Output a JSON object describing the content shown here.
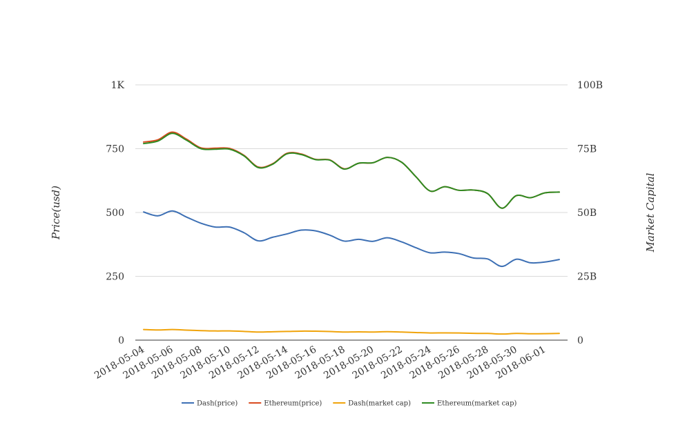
{
  "chart_data": {
    "type": "line",
    "x": [
      "2018-05-04",
      "2018-05-05",
      "2018-05-06",
      "2018-05-07",
      "2018-05-08",
      "2018-05-09",
      "2018-05-10",
      "2018-05-11",
      "2018-05-12",
      "2018-05-13",
      "2018-05-14",
      "2018-05-15",
      "2018-05-16",
      "2018-05-17",
      "2018-05-18",
      "2018-05-19",
      "2018-05-20",
      "2018-05-21",
      "2018-05-22",
      "2018-05-23",
      "2018-05-24",
      "2018-05-25",
      "2018-05-26",
      "2018-05-27",
      "2018-05-28",
      "2018-05-29",
      "2018-05-30",
      "2018-05-31",
      "2018-06-01",
      "2018-06-02"
    ],
    "x_tick_labels": [
      "2018-05-04",
      "2018-05-06",
      "2018-05-08",
      "2018-05-10",
      "2018-05-12",
      "2018-05-14",
      "2018-05-16",
      "2018-05-18",
      "2018-05-20",
      "2018-05-22",
      "2018-05-24",
      "2018-05-26",
      "2018-05-28",
      "2018-05-30",
      "2018-06-01"
    ],
    "y_left": {
      "label": "Price(usd)",
      "range": [
        0,
        1000
      ],
      "ticks": [
        0,
        250,
        500,
        750,
        1000
      ],
      "tick_labels": [
        "0",
        "250",
        "500",
        "750",
        "1K"
      ]
    },
    "y_right": {
      "label": "Market Capital",
      "range": [
        0,
        100000000000
      ],
      "ticks": [
        0,
        25000000000,
        50000000000,
        75000000000,
        100000000000
      ],
      "tick_labels": [
        "0",
        "25B",
        "50B",
        "75B",
        "100B"
      ]
    },
    "grid": true,
    "legend_position": "bottom",
    "series": [
      {
        "name": "Dash(price)",
        "axis": "left",
        "color": "#3c6fb4",
        "values": [
          502,
          487,
          506,
          482,
          458,
          443,
          443,
          421,
          389,
          403,
          416,
          431,
          428,
          411,
          388,
          395,
          387,
          401,
          385,
          362,
          342,
          345,
          339,
          322,
          318,
          289,
          317,
          303,
          306,
          316
        ]
      },
      {
        "name": "Ethereum(price)",
        "axis": "left",
        "color": "#d94a1f",
        "values": [
          776,
          785,
          815,
          787,
          753,
          752,
          751,
          724,
          678,
          691,
          732,
          729,
          708,
          706,
          671,
          693,
          695,
          716,
          697,
          640,
          584,
          601,
          587,
          588,
          574,
          517,
          566,
          558,
          577,
          580
        ]
      },
      {
        "name": "Dash(market cap)",
        "axis": "right",
        "color": "#f0a30a",
        "values": [
          4150000000,
          3980000000,
          4150000000,
          3930000000,
          3730000000,
          3600000000,
          3600000000,
          3420000000,
          3170000000,
          3290000000,
          3400000000,
          3530000000,
          3500000000,
          3370000000,
          3180000000,
          3240000000,
          3180000000,
          3300000000,
          3170000000,
          2980000000,
          2820000000,
          2850000000,
          2800000000,
          2660000000,
          2630000000,
          2390000000,
          2630000000,
          2510000000,
          2540000000,
          2630000000
        ]
      },
      {
        "name": "Ethereum(market cap)",
        "axis": "right",
        "color": "#2e8b22",
        "values": [
          77000000000,
          78000000000,
          81000000000,
          78300000000,
          75000000000,
          74800000000,
          74800000000,
          72200000000,
          67600000000,
          68900000000,
          73000000000,
          72700000000,
          70700000000,
          70500000000,
          67000000000,
          69300000000,
          69500000000,
          71600000000,
          69700000000,
          64000000000,
          58400000000,
          60100000000,
          58700000000,
          58800000000,
          57400000000,
          51700000000,
          56600000000,
          55800000000,
          57700000000,
          58000000000
        ]
      }
    ]
  }
}
